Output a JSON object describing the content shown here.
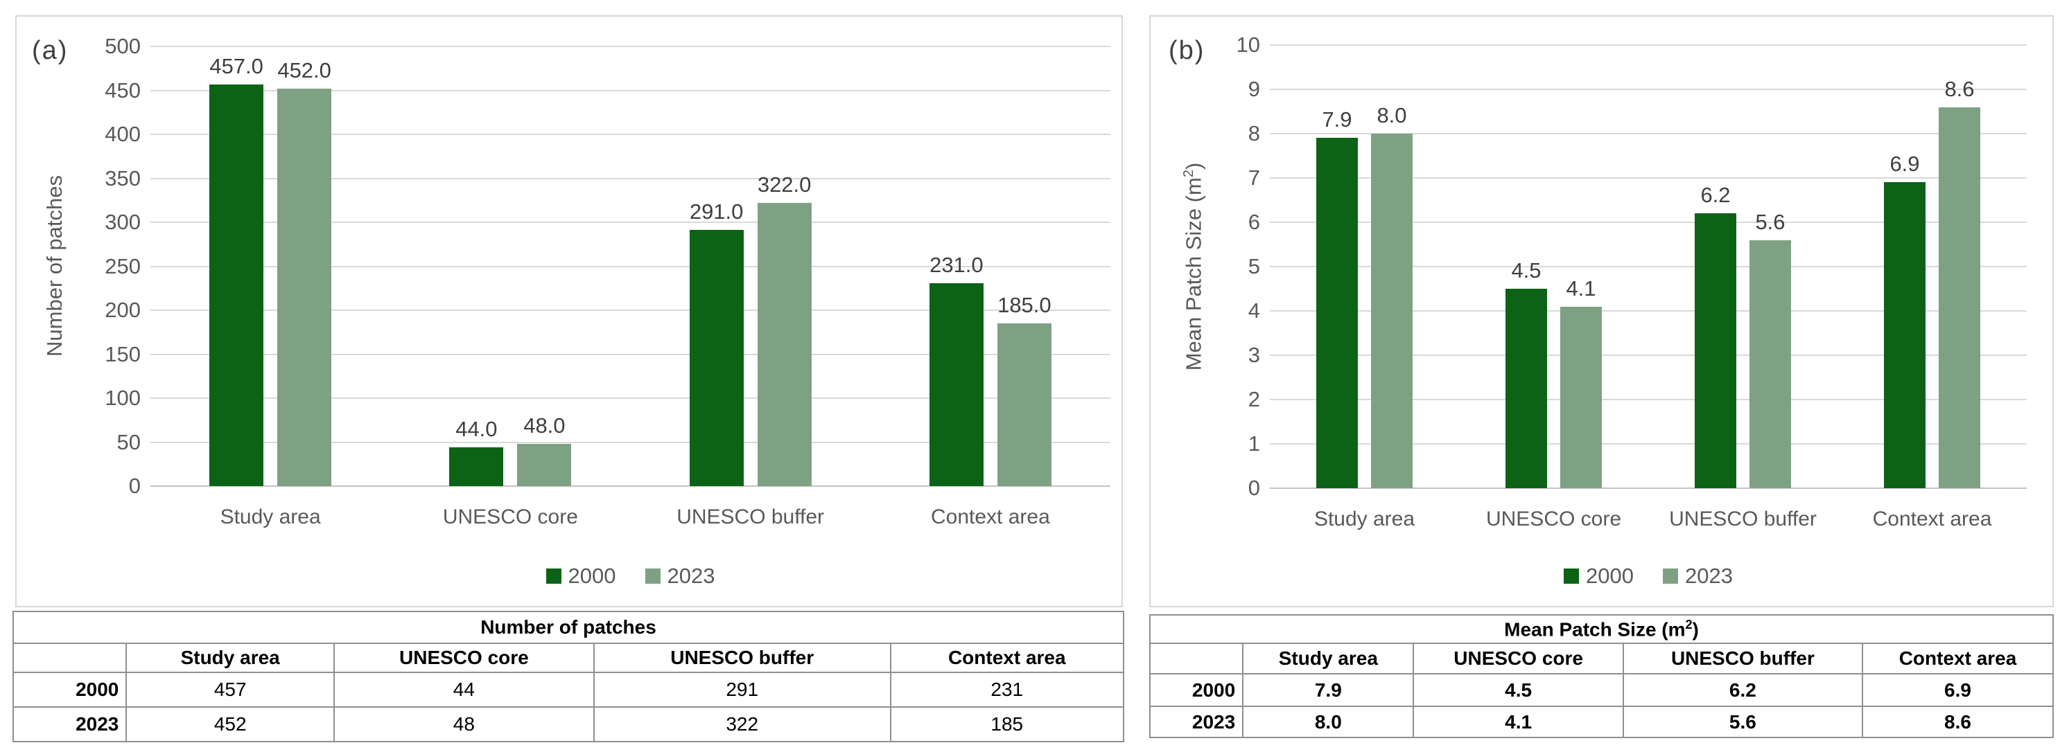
{
  "colors": {
    "bar_2000": "#0c6316",
    "bar_2023": "#7ea184",
    "axis_text": "#595959",
    "data_label_text": "#3f3f3f",
    "gridline": "#d9d9d9",
    "chart_border": "#d7d7d7",
    "table_border": "#8f8f8f",
    "table_text": "#000000"
  },
  "chart_data": [
    {
      "type": "bar",
      "panel_label": "(a)",
      "title": "",
      "xlabel": "",
      "ylabel": "Number of patches",
      "categories": [
        "Study area",
        "UNESCO core",
        "UNESCO buffer",
        "Context area"
      ],
      "series": [
        {
          "name": "2000",
          "values": [
            457,
            44,
            291,
            231
          ]
        },
        {
          "name": "2023",
          "values": [
            452,
            48,
            322,
            185
          ]
        }
      ],
      "bar_labels": [
        [
          "457.0",
          "44.0",
          "291.0",
          "231.0"
        ],
        [
          "452.0",
          "48.0",
          "322.0",
          "185.0"
        ]
      ],
      "ylim": [
        0,
        500
      ],
      "ytick_step": 50,
      "ytick_labels": [
        "0",
        "50",
        "100",
        "150",
        "200",
        "250",
        "300",
        "350",
        "400",
        "450",
        "500"
      ],
      "grid": true,
      "legend": [
        "2000",
        "2023"
      ],
      "legend_position": "bottom",
      "table": {
        "title": "Number of patches",
        "col_headers": [
          "",
          "Study area",
          "UNESCO core",
          "UNESCO buffer",
          "Context area"
        ],
        "row_labels": [
          "2000",
          "2023"
        ],
        "rows": [
          [
            "457",
            "44",
            "291",
            "231"
          ],
          [
            "452",
            "48",
            "322",
            "185"
          ]
        ]
      }
    },
    {
      "type": "bar",
      "panel_label": "(b)",
      "title": "",
      "xlabel": "",
      "ylabel": "Mean Patch Size (m²)",
      "categories": [
        "Study area",
        "UNESCO core",
        "UNESCO buffer",
        "Context area"
      ],
      "series": [
        {
          "name": "2000",
          "values": [
            7.9,
            4.5,
            6.2,
            6.9
          ]
        },
        {
          "name": "2023",
          "values": [
            8.0,
            4.1,
            5.6,
            8.6
          ]
        }
      ],
      "bar_labels": [
        [
          "7.9",
          "4.5",
          "6.2",
          "6.9"
        ],
        [
          "8.0",
          "4.1",
          "5.6",
          "8.6"
        ]
      ],
      "ylim": [
        0,
        10
      ],
      "ytick_step": 1,
      "ytick_labels": [
        "0",
        "1",
        "2",
        "3",
        "4",
        "5",
        "6",
        "7",
        "8",
        "9",
        "10"
      ],
      "grid": true,
      "legend": [
        "2000",
        "2023"
      ],
      "legend_position": "bottom",
      "table": {
        "title": "Mean Patch Size (m²)",
        "col_headers": [
          "",
          "Study area",
          "UNESCO core",
          "UNESCO buffer",
          "Context area"
        ],
        "row_labels": [
          "2000",
          "2023"
        ],
        "rows": [
          [
            "7.9",
            "4.5",
            "6.2",
            "6.9"
          ],
          [
            "8.0",
            "4.1",
            "5.6",
            "8.6"
          ]
        ]
      }
    }
  ]
}
